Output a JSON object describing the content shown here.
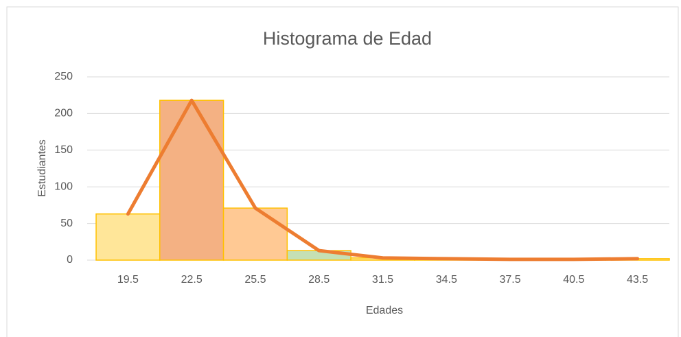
{
  "chart_data": {
    "type": "bar",
    "title": "Histograma de Edad",
    "x_label": "Edades",
    "y_label": "Estudiantes",
    "categories": [
      "19.5",
      "22.5",
      "25.5",
      "28.5",
      "31.5",
      "34.5",
      "37.5",
      "40.5",
      "43.5"
    ],
    "values": [
      63,
      218,
      71,
      13,
      3,
      2,
      1,
      1,
      2
    ],
    "colors": [
      "#ffe699",
      "#f4b183",
      "#ffc994",
      "#c5e0b4",
      "#ffe699",
      "#ffe699",
      "#ffe699",
      "#ffe699",
      "#ffe699"
    ],
    "edge_color": "#ffc000",
    "line_color": "#ed7d31",
    "line": true,
    "ylim": [
      0,
      250
    ],
    "yticks": [
      0,
      50,
      100,
      150,
      200,
      250
    ],
    "grid": true
  }
}
